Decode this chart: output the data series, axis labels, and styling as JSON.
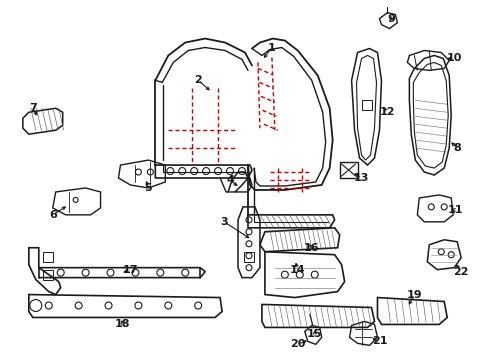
{
  "bg_color": "#ffffff",
  "line_color": "#1a1a1a",
  "red_color": "#cc0000",
  "figsize": [
    4.89,
    3.6
  ],
  "dpi": 100
}
